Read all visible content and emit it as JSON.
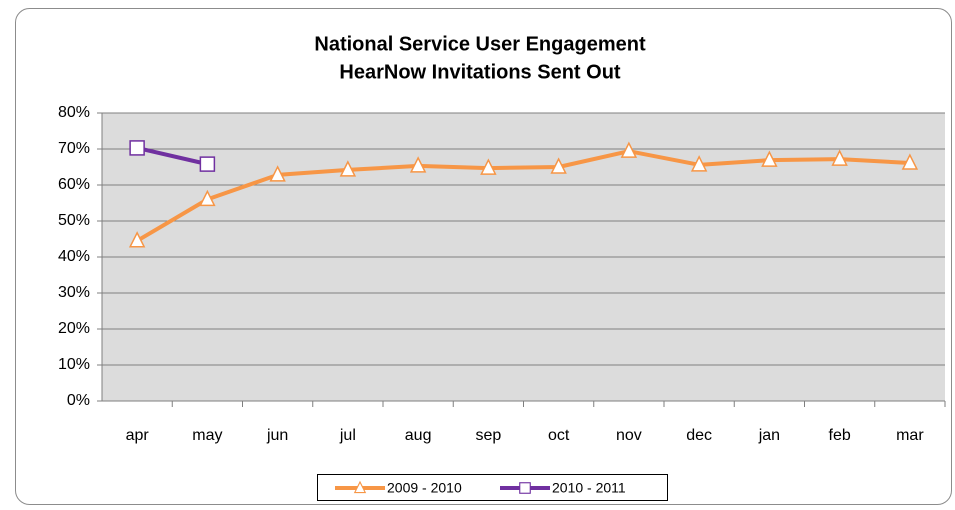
{
  "chart_data": {
    "type": "line",
    "title": [
      "National Service User Engagement",
      "HearNow Invitations Sent Out"
    ],
    "categories": [
      "apr",
      "may",
      "jun",
      "jul",
      "aug",
      "sep",
      "oct",
      "nov",
      "dec",
      "jan",
      "feb",
      "mar"
    ],
    "series": [
      {
        "name": "2009 - 2010",
        "color": "#f79646",
        "marker": "triangle",
        "values": [
          44.5,
          56,
          62.8,
          64.2,
          65.3,
          64.7,
          65,
          69.4,
          65.6,
          66.9,
          67.2,
          66.1
        ]
      },
      {
        "name": "2010 - 2011",
        "color": "#7030a0",
        "marker": "square",
        "values": [
          70.3,
          65.8,
          null,
          null,
          null,
          null,
          null,
          null,
          null,
          null,
          null,
          null
        ]
      }
    ],
    "ylim": [
      0,
      80
    ],
    "yticks": [
      {
        "value": 0,
        "label": "0%"
      },
      {
        "value": 10,
        "label": "10%"
      },
      {
        "value": 20,
        "label": "20%"
      },
      {
        "value": 30,
        "label": "30%"
      },
      {
        "value": 40,
        "label": "40%"
      },
      {
        "value": 50,
        "label": "50%"
      },
      {
        "value": 60,
        "label": "60%"
      },
      {
        "value": 70,
        "label": "70%"
      },
      {
        "value": 80,
        "label": "80%"
      }
    ],
    "grid": true,
    "legend": "bottom"
  }
}
